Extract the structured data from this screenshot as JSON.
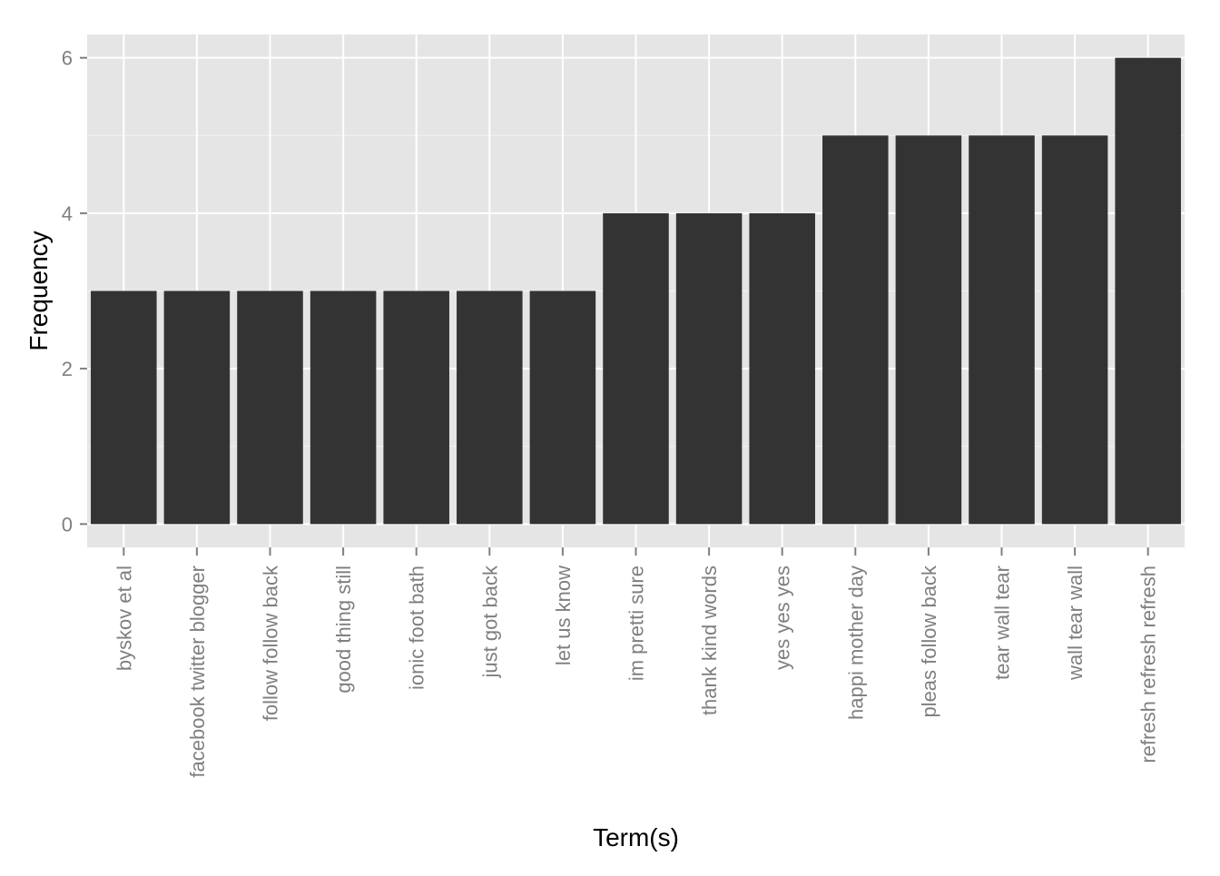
{
  "chart_data": {
    "type": "bar",
    "title": "",
    "xlabel": "Term(s)",
    "ylabel": "Frequency",
    "categories": [
      "byskov et al",
      "facebook twitter blogger",
      "follow follow back",
      "good thing still",
      "ionic foot bath",
      "just got back",
      "let us know",
      "im pretti sure",
      "thank kind words",
      "yes yes yes",
      "happi mother day",
      "pleas follow back",
      "tear wall tear",
      "wall tear wall",
      "refresh refresh refresh"
    ],
    "values": [
      3,
      3,
      3,
      3,
      3,
      3,
      3,
      4,
      4,
      4,
      5,
      5,
      5,
      5,
      6
    ],
    "ylim": [
      -0.3,
      6.3
    ],
    "yticks": [
      0,
      2,
      4,
      6
    ],
    "grid": true,
    "colors": {
      "panel": "#e5e5e5",
      "gridMajor": "#ffffff",
      "gridMinor": "#f2f2f2",
      "bar": "#333333",
      "tickLabel": "#7f7f7f",
      "tickMark": "#7f7f7f",
      "axisTitle": "#000000"
    }
  }
}
